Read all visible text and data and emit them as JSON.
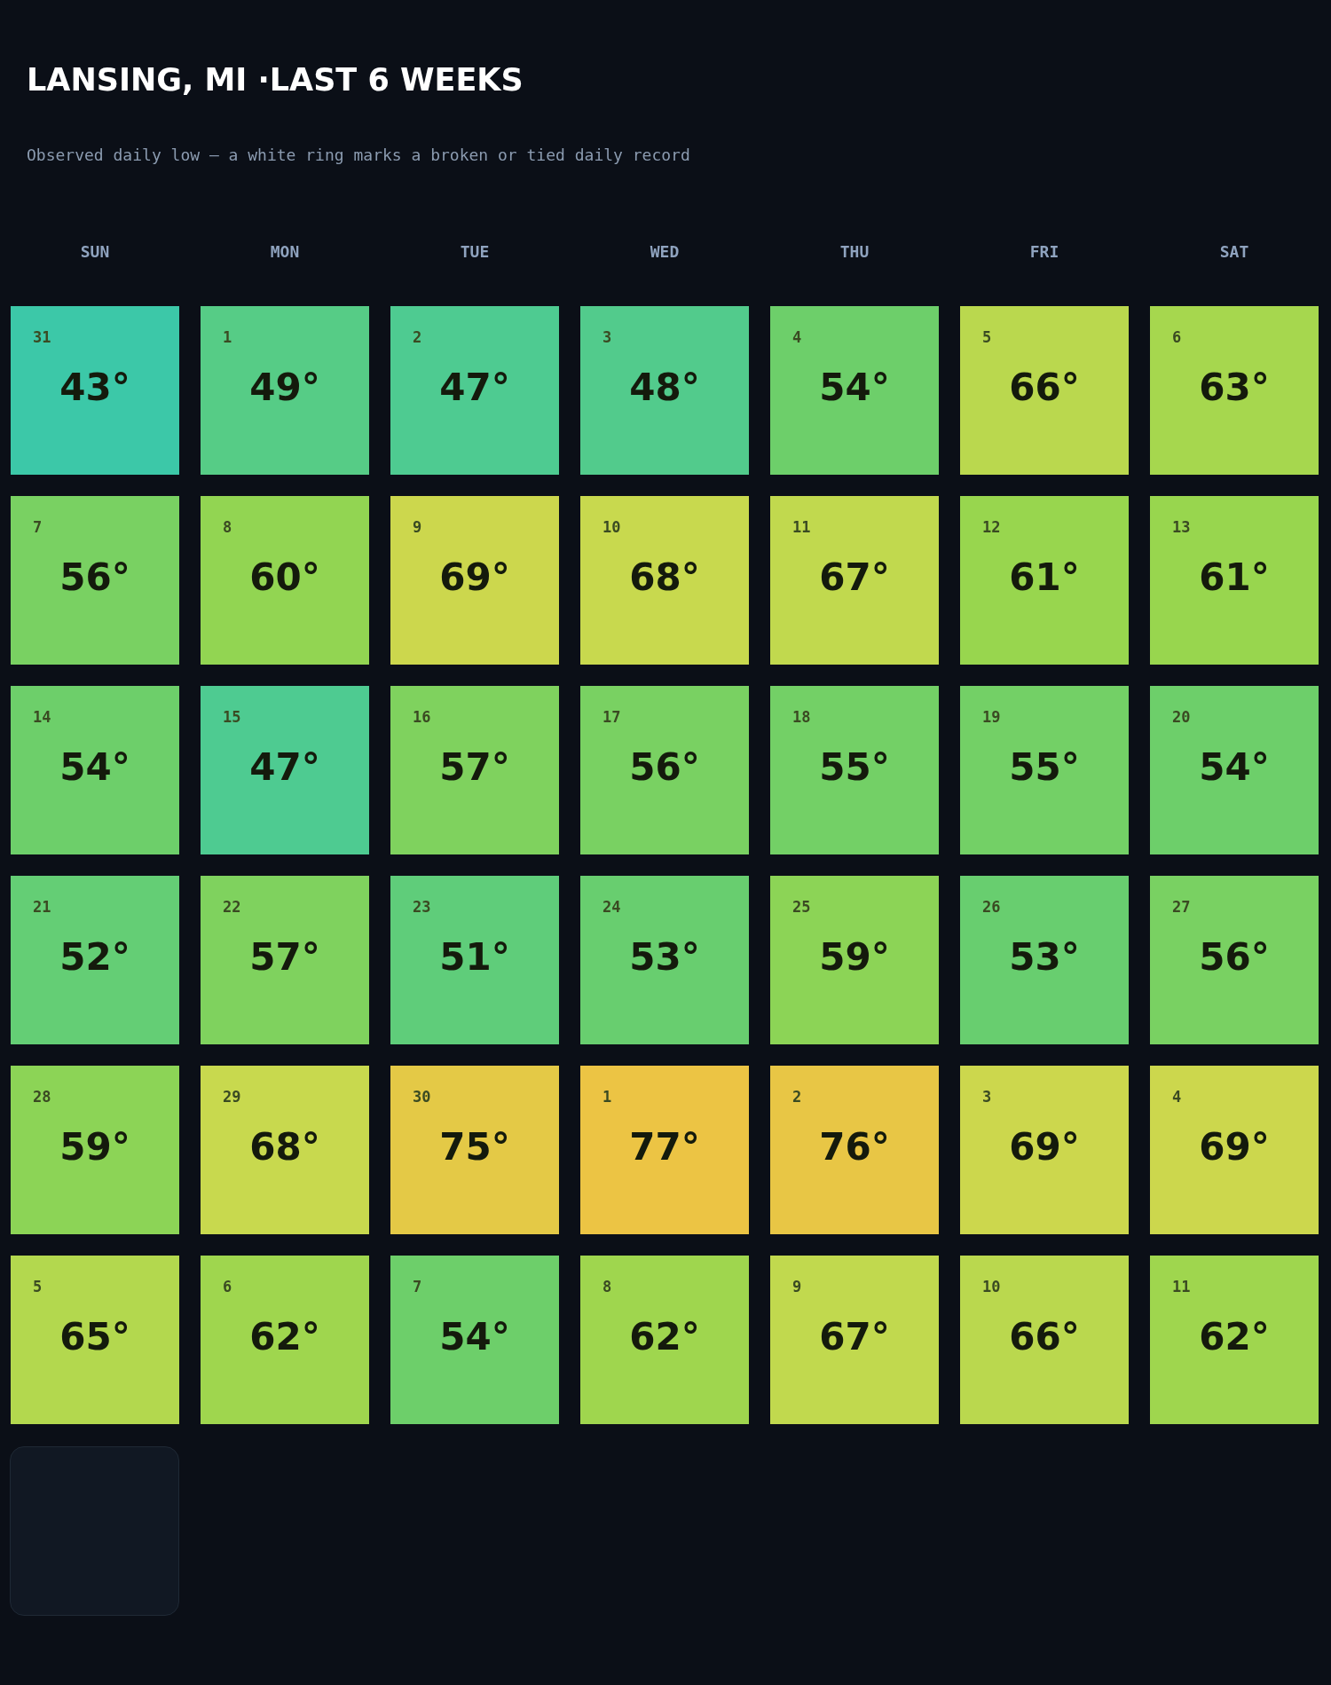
{
  "chart_data": {
    "type": "heatmap",
    "title": "LANSING, MI ·LAST 6 WEEKS",
    "subtitle": "Observed daily low — a white ring marks a broken or tied daily record",
    "categories": [
      "SUN",
      "MON",
      "TUE",
      "WED",
      "THU",
      "FRI",
      "SAT"
    ],
    "y_categories": [
      null,
      null,
      null,
      null,
      null,
      null
    ],
    "cells": [
      [
        43,
        49,
        47,
        48,
        54,
        66,
        63
      ],
      [
        56,
        60,
        69,
        68,
        67,
        61,
        61
      ],
      [
        54,
        47,
        57,
        56,
        55,
        55,
        54
      ],
      [
        52,
        57,
        51,
        53,
        59,
        53,
        56
      ],
      [
        59,
        68,
        75,
        77,
        76,
        69,
        69
      ],
      [
        65,
        62,
        54,
        62,
        67,
        66,
        62
      ]
    ],
    "cell_labels": [
      [
        "43°",
        "49°",
        "47°",
        "48°",
        "54°",
        "66°",
        "63°"
      ],
      [
        "56°",
        "60°",
        "69°",
        "68°",
        "67°",
        "61°",
        "61°"
      ],
      [
        "54°",
        "47°",
        "57°",
        "56°",
        "55°",
        "55°",
        "54°"
      ],
      [
        "52°",
        "57°",
        "51°",
        "53°",
        "59°",
        "53°",
        "56°"
      ],
      [
        "59°",
        "68°",
        "75°",
        "77°",
        "76°",
        "69°",
        "69°"
      ],
      [
        "65°",
        "62°",
        "54°",
        "62°",
        "67°",
        "66°",
        "62°"
      ]
    ],
    "annotations": [
      "31",
      "1",
      "2",
      "3",
      "4",
      "5",
      "6",
      "7",
      "8",
      "9",
      "10",
      "11",
      "12",
      "13",
      "14",
      "15",
      "16",
      "17",
      "18",
      "19",
      "20",
      "21",
      "22",
      "23",
      "24",
      "25",
      "26",
      "27",
      "28",
      "29",
      "30",
      "1",
      "2",
      "3",
      "4",
      "5",
      "6",
      "7",
      "8",
      "9",
      "10",
      "11"
    ]
  }
}
